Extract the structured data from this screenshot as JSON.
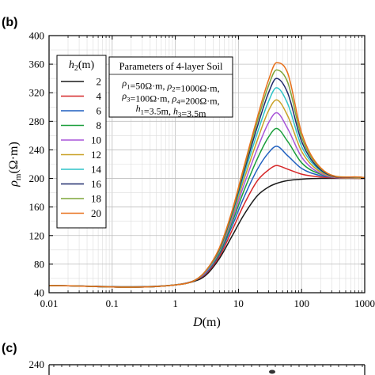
{
  "panels": {
    "b": "(b)",
    "c": "(c)"
  },
  "chart_data": [
    {
      "type": "line",
      "x_scale": "log",
      "xlim": [
        0.01,
        1000
      ],
      "ylim": [
        40,
        400
      ],
      "xlabel": "D(m)",
      "ylabel": "ρm(Ω·m)",
      "xticks": [
        0.01,
        0.1,
        1,
        10,
        100,
        1000
      ],
      "xtick_labels": [
        "0.01",
        "0.1",
        "1",
        "10",
        "100",
        "1000"
      ],
      "yticks": [
        40,
        80,
        120,
        160,
        200,
        240,
        280,
        320,
        360,
        400
      ],
      "ytick_labels": [
        "40",
        "80",
        "120",
        "160",
        "200",
        "240",
        "280",
        "320",
        "360",
        "400"
      ],
      "grid": true,
      "legend": {
        "title": "h2(m)",
        "placement": "top-left"
      },
      "annotation": {
        "title": "Parameters of 4-layer Soil",
        "lines": [
          "ρ1=50Ω·m, ρ2=1000Ω·m,",
          "ρ3=100Ω·m, ρ4=200Ω·m,",
          "h1=3.5m, h3=3.5m"
        ]
      },
      "series": [
        {
          "name": "2",
          "color": "#1a1a1a",
          "x": [
            0.01,
            1,
            2,
            3,
            5,
            8,
            12,
            20,
            30,
            40,
            60,
            100,
            200,
            1000
          ],
          "y": [
            50,
            51,
            56,
            64,
            88,
            120,
            148,
            176,
            188,
            193,
            197,
            199,
            200,
            200
          ]
        },
        {
          "name": "4",
          "color": "#d62728",
          "x": [
            0.01,
            1,
            2,
            3,
            5,
            8,
            12,
            20,
            30,
            40,
            60,
            100,
            200,
            1000
          ],
          "y": [
            50,
            51,
            57,
            66,
            91,
            128,
            162,
            197,
            212,
            218,
            213,
            206,
            202,
            200
          ]
        },
        {
          "name": "6",
          "color": "#1f5fbf",
          "x": [
            0.01,
            1,
            2,
            3,
            5,
            8,
            12,
            20,
            30,
            40,
            60,
            100,
            200,
            1000
          ],
          "y": [
            50,
            51,
            57,
            67,
            94,
            134,
            172,
            213,
            236,
            245,
            232,
            214,
            204,
            200
          ]
        },
        {
          "name": "8",
          "color": "#1a9e3a",
          "x": [
            0.01,
            1,
            2,
            3,
            5,
            8,
            12,
            20,
            30,
            40,
            60,
            100,
            200,
            1000
          ],
          "y": [
            50,
            51,
            57,
            68,
            96,
            139,
            181,
            228,
            258,
            270,
            252,
            222,
            206,
            200
          ]
        },
        {
          "name": "10",
          "color": "#a855d8",
          "x": [
            0.01,
            1,
            2,
            3,
            5,
            8,
            12,
            20,
            30,
            40,
            60,
            100,
            200,
            1000
          ],
          "y": [
            50,
            51,
            57,
            68,
            98,
            143,
            189,
            242,
            278,
            292,
            270,
            230,
            207,
            200
          ]
        },
        {
          "name": "12",
          "color": "#c9a227",
          "x": [
            0.01,
            1,
            2,
            3,
            5,
            8,
            12,
            20,
            30,
            40,
            60,
            100,
            200,
            1000
          ],
          "y": [
            50,
            51,
            57,
            69,
            99,
            147,
            196,
            254,
            295,
            310,
            288,
            238,
            209,
            200
          ]
        },
        {
          "name": "14",
          "color": "#2ec4c8",
          "x": [
            0.01,
            1,
            2,
            3,
            5,
            8,
            12,
            20,
            30,
            40,
            60,
            100,
            200,
            1000
          ],
          "y": [
            50,
            51,
            57,
            69,
            100,
            150,
            202,
            264,
            308,
            327,
            305,
            245,
            211,
            201
          ]
        },
        {
          "name": "16",
          "color": "#1f2a6b",
          "x": [
            0.01,
            1,
            2,
            3,
            5,
            8,
            12,
            20,
            30,
            40,
            60,
            100,
            200,
            1000
          ],
          "y": [
            50,
            51,
            57,
            70,
            101,
            152,
            207,
            273,
            320,
            340,
            320,
            252,
            212,
            201
          ]
        },
        {
          "name": "18",
          "color": "#7ea53a",
          "x": [
            0.01,
            1,
            2,
            3,
            5,
            8,
            12,
            20,
            30,
            40,
            60,
            100,
            200,
            1000
          ],
          "y": [
            50,
            51,
            57,
            70,
            102,
            154,
            211,
            280,
            330,
            352,
            335,
            258,
            214,
            201
          ]
        },
        {
          "name": "20",
          "color": "#e8701a",
          "x": [
            0.01,
            1,
            2,
            3,
            5,
            8,
            12,
            20,
            30,
            40,
            60,
            100,
            200,
            1000
          ],
          "y": [
            50,
            51,
            57,
            70,
            103,
            156,
            214,
            286,
            338,
            362,
            348,
            264,
            215,
            201
          ]
        }
      ]
    },
    {
      "type": "line",
      "yticks": [
        240
      ],
      "ytick_labels": [
        "240"
      ]
    }
  ]
}
